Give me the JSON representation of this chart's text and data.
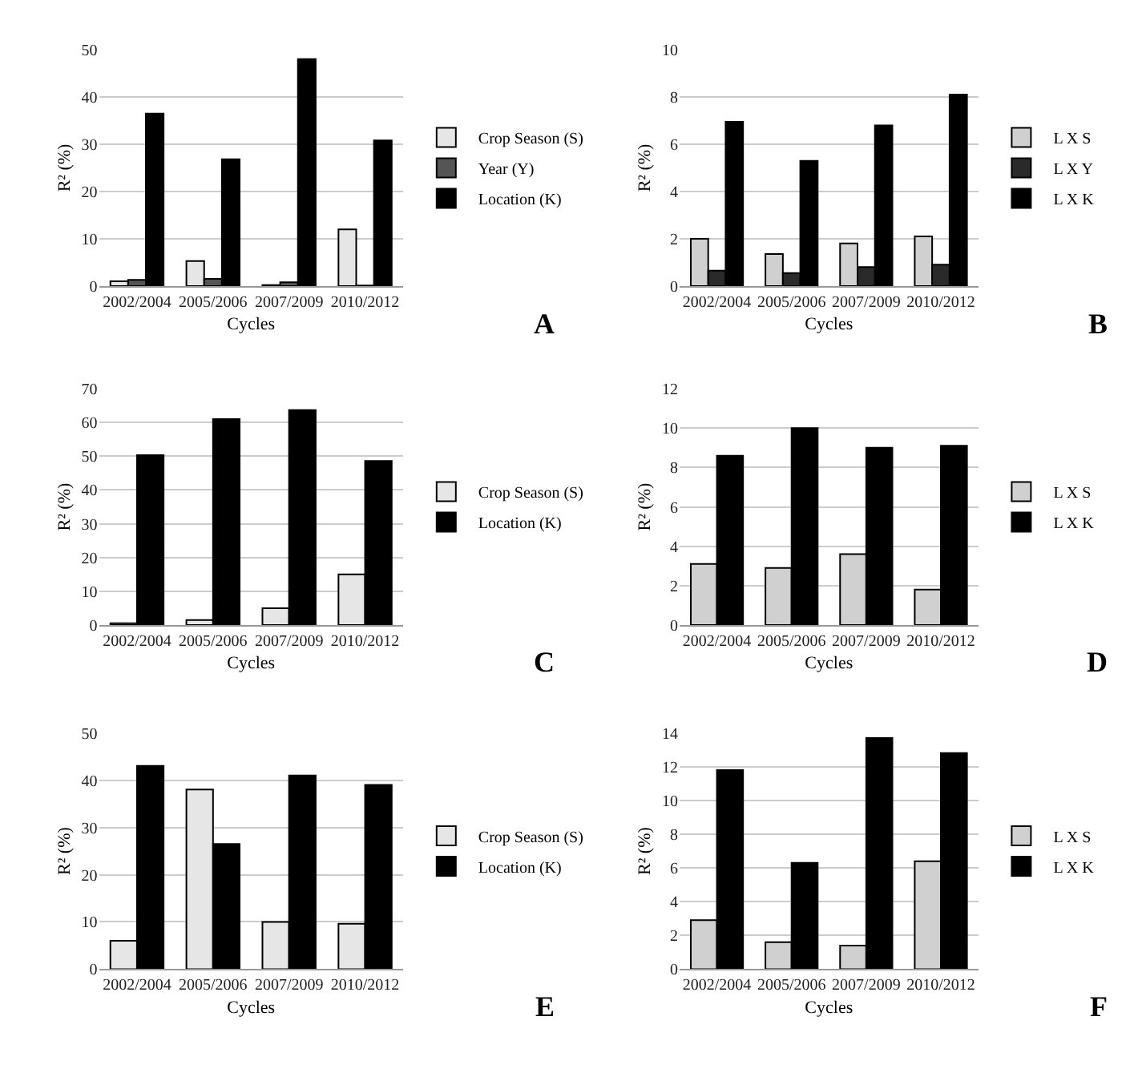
{
  "chart_data": [
    {
      "type": "bar",
      "annotations": [
        "A"
      ],
      "xlabel": "Cycles",
      "ylabel": "R² (%)",
      "categories": [
        "2002/2004",
        "2005/2006",
        "2007/2009",
        "2010/2012"
      ],
      "ylim": [
        0,
        50
      ],
      "yticks": [
        0,
        10,
        20,
        30,
        40,
        50
      ],
      "grid": "y",
      "legend": "right",
      "series": [
        {
          "name": "Crop Season (S)",
          "color": "#e6e6e6",
          "values": [
            1.0,
            5.3,
            0.2,
            12.0
          ]
        },
        {
          "name": "Year (Y)",
          "color": "#555555",
          "values": [
            1.3,
            1.5,
            0.8,
            0.1
          ]
        },
        {
          "name": "Location (K)",
          "color": "#000000",
          "values": [
            36.5,
            26.8,
            48.0,
            30.8
          ]
        }
      ]
    },
    {
      "type": "bar",
      "annotations": [
        "B"
      ],
      "xlabel": "Cycles",
      "ylabel": "R² (%)",
      "categories": [
        "2002/2004",
        "2005/2006",
        "2007/2009",
        "2010/2012"
      ],
      "ylim": [
        0,
        10
      ],
      "yticks": [
        0,
        2,
        4,
        6,
        8,
        10
      ],
      "grid": "y",
      "legend": "right",
      "series": [
        {
          "name": "L X S",
          "color": "#d0d0d0",
          "values": [
            2.0,
            1.35,
            1.8,
            2.1
          ]
        },
        {
          "name": "L X Y",
          "color": "#2a2a2a",
          "values": [
            0.65,
            0.55,
            0.8,
            0.9
          ]
        },
        {
          "name": "L X K",
          "color": "#000000",
          "values": [
            6.95,
            5.3,
            6.8,
            8.1
          ]
        }
      ]
    },
    {
      "type": "bar",
      "annotations": [
        "C"
      ],
      "xlabel": "Cycles",
      "ylabel": "R² (%)",
      "categories": [
        "2002/2004",
        "2005/2006",
        "2007/2009",
        "2010/2012"
      ],
      "ylim": [
        0,
        70
      ],
      "yticks": [
        0,
        10,
        20,
        30,
        40,
        50,
        60,
        70
      ],
      "grid": "y",
      "legend": "right",
      "series": [
        {
          "name": "Crop Season (S)",
          "color": "#e6e6e6",
          "values": [
            0.5,
            1.5,
            5.0,
            15.0
          ]
        },
        {
          "name": "Location (K)",
          "color": "#000000",
          "values": [
            50.3,
            61.0,
            63.7,
            48.6
          ]
        }
      ]
    },
    {
      "type": "bar",
      "annotations": [
        "D"
      ],
      "xlabel": "Cycles",
      "ylabel": "R² (%)",
      "categories": [
        "2002/2004",
        "2005/2006",
        "2007/2009",
        "2010/2012"
      ],
      "ylim": [
        0,
        12
      ],
      "yticks": [
        0,
        2,
        4,
        6,
        8,
        10,
        12
      ],
      "grid": "y",
      "legend": "right",
      "series": [
        {
          "name": "L X S",
          "color": "#d0d0d0",
          "values": [
            3.1,
            2.9,
            3.6,
            1.8
          ]
        },
        {
          "name": "L X K",
          "color": "#000000",
          "values": [
            8.6,
            10.0,
            9.0,
            9.1
          ]
        }
      ]
    },
    {
      "type": "bar",
      "annotations": [
        "E"
      ],
      "xlabel": "Cycles",
      "ylabel": "R² (%)",
      "categories": [
        "2002/2004",
        "2005/2006",
        "2007/2009",
        "2010/2012"
      ],
      "ylim": [
        0,
        50
      ],
      "yticks": [
        0,
        10,
        20,
        30,
        40,
        50
      ],
      "grid": "y",
      "legend": "right",
      "series": [
        {
          "name": "Crop Season (S)",
          "color": "#e6e6e6",
          "values": [
            6.0,
            38.0,
            10.0,
            9.6
          ]
        },
        {
          "name": "Location (K)",
          "color": "#000000",
          "values": [
            43.0,
            26.5,
            41.0,
            39.0
          ]
        }
      ]
    },
    {
      "type": "bar",
      "annotations": [
        "F"
      ],
      "xlabel": "Cycles",
      "ylabel": "R² (%)",
      "categories": [
        "2002/2004",
        "2005/2006",
        "2007/2009",
        "2010/2012"
      ],
      "ylim": [
        0,
        14
      ],
      "yticks": [
        0,
        2,
        4,
        6,
        8,
        10,
        12,
        14
      ],
      "grid": "y",
      "legend": "right",
      "series": [
        {
          "name": "L X S",
          "color": "#d0d0d0",
          "values": [
            2.9,
            1.6,
            1.4,
            6.4
          ]
        },
        {
          "name": "L X K",
          "color": "#000000",
          "values": [
            11.8,
            6.3,
            13.7,
            12.8
          ]
        }
      ]
    }
  ]
}
